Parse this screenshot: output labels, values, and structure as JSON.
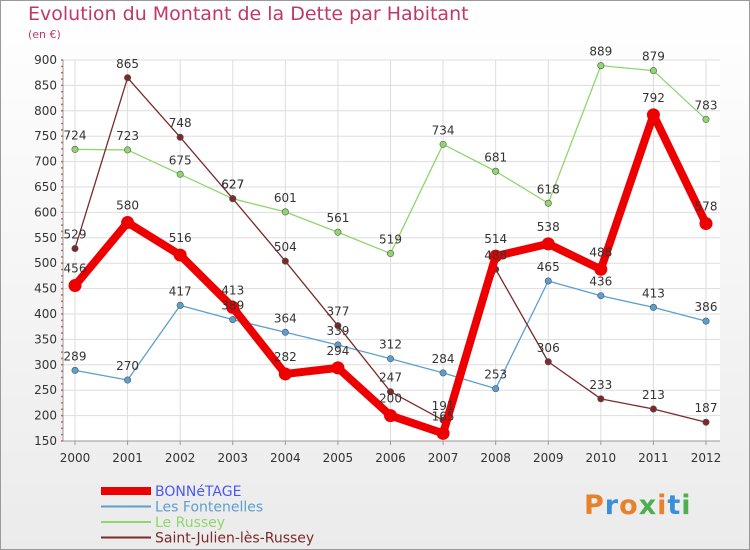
{
  "header": {
    "title": "Evolution du Montant de la Dette par Habitant",
    "subtitle": "(en €)"
  },
  "logo": {
    "text": "Proxiti",
    "colors": [
      "#e8822a",
      "#3a8fd8",
      "#e8822a",
      "#4caf50",
      "#e8822a",
      "#3a8fd8",
      "#4caf50"
    ]
  },
  "chart_data": {
    "type": "line",
    "title": "Evolution du Montant de la Dette par Habitant",
    "subtitle": "(en €)",
    "xlabel": "",
    "ylabel": "",
    "categories": [
      "2000",
      "2001",
      "2002",
      "2003",
      "2004",
      "2005",
      "2006",
      "2007",
      "2008",
      "2009",
      "2010",
      "2011",
      "2012"
    ],
    "y_ticks": [
      150,
      200,
      250,
      300,
      350,
      400,
      450,
      500,
      550,
      600,
      650,
      700,
      750,
      800,
      850,
      900
    ],
    "ylim": [
      150,
      900
    ],
    "grid": true,
    "legend_position": "bottom-left",
    "series": [
      {
        "name": "BONNéTAGE",
        "color": "#ee0000",
        "legend_color": "#4a5af0",
        "thick": true,
        "values": [
          456,
          580,
          516,
          413,
          282,
          294,
          200,
          165,
          514,
          538,
          488,
          792,
          578
        ],
        "labels": [
          "456",
          "580",
          "516",
          "413",
          "282",
          "294",
          "200",
          "165",
          "514",
          "538",
          "488",
          "792",
          "578"
        ]
      },
      {
        "name": "Les Fontenelles",
        "color": "#5b9fd0",
        "legend_color": "#5b9fd0",
        "thick": false,
        "values": [
          289,
          270,
          417,
          389,
          364,
          339,
          312,
          284,
          253,
          465,
          436,
          413,
          386
        ],
        "labels": [
          "289",
          "270",
          "417",
          "389",
          "364",
          "339",
          "312",
          "284",
          "253",
          "465",
          "436",
          "413",
          "386"
        ]
      },
      {
        "name": "Le Russey",
        "color": "#8fd66b",
        "legend_color": "#8fd66b",
        "thick": false,
        "values": [
          724,
          723,
          675,
          627,
          601,
          561,
          519,
          734,
          681,
          618,
          889,
          879,
          783
        ],
        "labels": [
          "724",
          "723",
          "675",
          "627",
          "601",
          "561",
          "519",
          "734",
          "681",
          "618",
          "889",
          "879",
          "783"
        ]
      },
      {
        "name": "Saint-Julien-lès-Russey",
        "color": "#7a2a2a",
        "legend_color": "#7a2a2a",
        "thick": false,
        "values": [
          529,
          865,
          748,
          627,
          504,
          377,
          247,
          191,
          488,
          306,
          233,
          213,
          187
        ],
        "labels": [
          "529",
          "865",
          "748",
          "627",
          "504",
          "377",
          "247",
          "191",
          "488",
          "306",
          "233",
          "213",
          "187"
        ]
      }
    ]
  }
}
